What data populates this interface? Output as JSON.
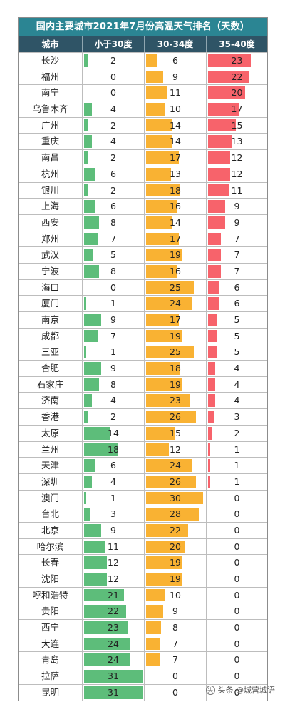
{
  "chart_data": {
    "type": "table",
    "title": "国内主要城市2021年7月份高温天气排名（天数）",
    "columns": [
      "城市",
      "小于30度",
      "30-34度",
      "35-40度"
    ],
    "series_colors": [
      "#5dbd7a",
      "#f9b233",
      "#f7636b"
    ],
    "max_values": [
      31,
      31,
      31
    ],
    "rows": [
      {
        "city": "长沙",
        "values": [
          2,
          6,
          23
        ]
      },
      {
        "city": "福州",
        "values": [
          0,
          9,
          22
        ]
      },
      {
        "city": "南宁",
        "values": [
          0,
          11,
          20
        ]
      },
      {
        "city": "乌鲁木齐",
        "values": [
          4,
          10,
          17
        ]
      },
      {
        "city": "广州",
        "values": [
          2,
          14,
          15
        ]
      },
      {
        "city": "重庆",
        "values": [
          4,
          14,
          13
        ]
      },
      {
        "city": "南昌",
        "values": [
          2,
          17,
          12
        ]
      },
      {
        "city": "杭州",
        "values": [
          6,
          13,
          12
        ]
      },
      {
        "city": "银川",
        "values": [
          2,
          18,
          11
        ]
      },
      {
        "city": "上海",
        "values": [
          6,
          16,
          9
        ]
      },
      {
        "city": "西安",
        "values": [
          8,
          14,
          9
        ]
      },
      {
        "city": "郑州",
        "values": [
          7,
          17,
          7
        ]
      },
      {
        "city": "武汉",
        "values": [
          5,
          19,
          7
        ]
      },
      {
        "city": "宁波",
        "values": [
          8,
          16,
          7
        ]
      },
      {
        "city": "海口",
        "values": [
          0,
          25,
          6
        ]
      },
      {
        "city": "厦门",
        "values": [
          1,
          24,
          6
        ]
      },
      {
        "city": "南京",
        "values": [
          9,
          17,
          5
        ]
      },
      {
        "city": "成都",
        "values": [
          7,
          19,
          5
        ]
      },
      {
        "city": "三亚",
        "values": [
          1,
          25,
          5
        ]
      },
      {
        "city": "合肥",
        "values": [
          9,
          18,
          4
        ]
      },
      {
        "city": "石家庄",
        "values": [
          8,
          19,
          4
        ]
      },
      {
        "city": "济南",
        "values": [
          4,
          23,
          4
        ]
      },
      {
        "city": "香港",
        "values": [
          2,
          26,
          3
        ]
      },
      {
        "city": "太原",
        "values": [
          14,
          15,
          2
        ]
      },
      {
        "city": "兰州",
        "values": [
          18,
          12,
          1
        ]
      },
      {
        "city": "天津",
        "values": [
          6,
          24,
          1
        ]
      },
      {
        "city": "深圳",
        "values": [
          4,
          26,
          1
        ]
      },
      {
        "city": "澳门",
        "values": [
          1,
          30,
          0
        ]
      },
      {
        "city": "台北",
        "values": [
          3,
          28,
          0
        ]
      },
      {
        "city": "北京",
        "values": [
          9,
          22,
          0
        ]
      },
      {
        "city": "哈尔滨",
        "values": [
          11,
          20,
          0
        ]
      },
      {
        "city": "长春",
        "values": [
          12,
          19,
          0
        ]
      },
      {
        "city": "沈阳",
        "values": [
          12,
          19,
          0
        ]
      },
      {
        "city": "呼和浩特",
        "values": [
          21,
          10,
          0
        ]
      },
      {
        "city": "贵阳",
        "values": [
          22,
          9,
          0
        ]
      },
      {
        "city": "西宁",
        "values": [
          23,
          8,
          0
        ]
      },
      {
        "city": "大连",
        "values": [
          24,
          7,
          0
        ]
      },
      {
        "city": "青岛",
        "values": [
          24,
          7,
          0
        ]
      },
      {
        "city": "拉萨",
        "values": [
          31,
          0,
          0
        ]
      },
      {
        "city": "昆明",
        "values": [
          31,
          0,
          0
        ]
      }
    ]
  },
  "watermark": {
    "icon": "toutiao-icon",
    "text": "头条 @城营城语"
  }
}
